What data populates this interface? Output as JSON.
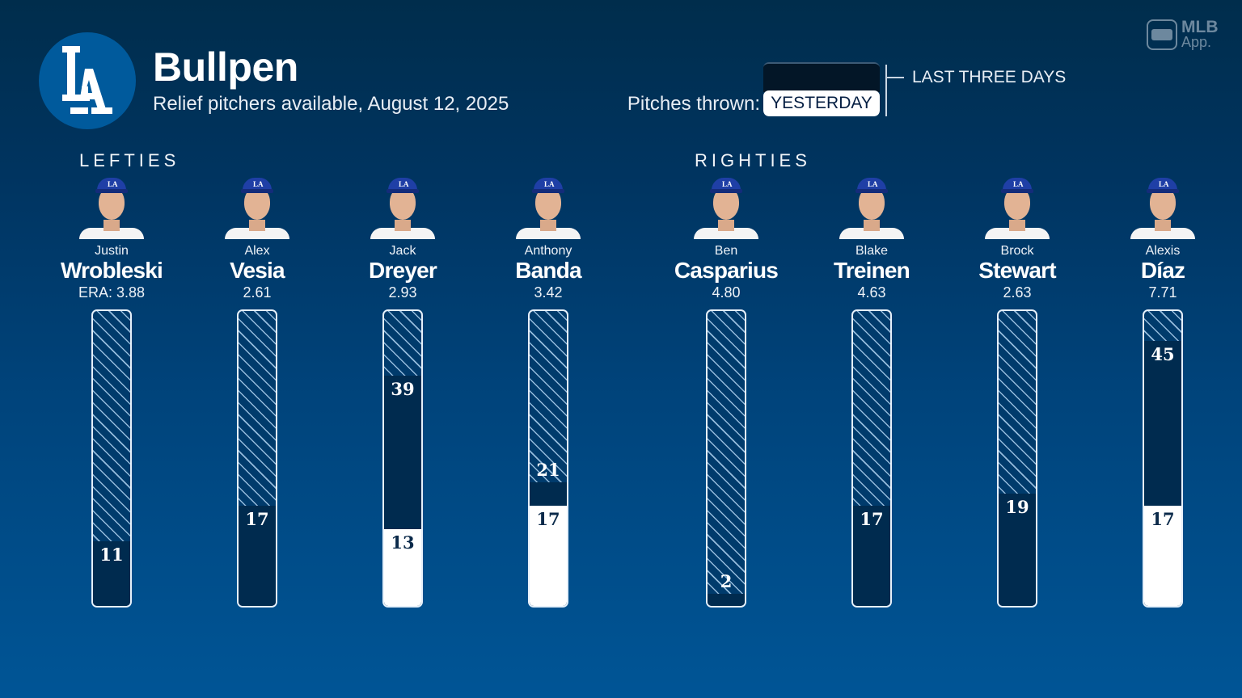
{
  "header": {
    "team_logo_text": "LA",
    "title": "Bullpen",
    "subtitle": "Relief pitchers available, August 12, 2025"
  },
  "legend": {
    "label": "Pitches thrown:",
    "yesterday": "YESTERDAY",
    "last_three_days": "LAST THREE DAYS"
  },
  "branding": {
    "mlb": "MLB",
    "app": "App."
  },
  "sections": {
    "lefties": "LEFTIES",
    "righties": "RIGHTIES"
  },
  "colors": {
    "bg_top": "#002d4c",
    "bg_bottom": "#005596",
    "last_three_days": "#002b4f",
    "yesterday": "#ffffff",
    "logo_circle": "#005a9c"
  },
  "players": [
    {
      "first": "Justin",
      "last": "Wrobleski",
      "era": "ERA: 3.88",
      "hand": "L",
      "last_three_days": 11,
      "yesterday": 0
    },
    {
      "first": "Alex",
      "last": "Vesia",
      "era": "2.61",
      "hand": "L",
      "last_three_days": 17,
      "yesterday": 0
    },
    {
      "first": "Jack",
      "last": "Dreyer",
      "era": "2.93",
      "hand": "L",
      "last_three_days": 39,
      "yesterday": 13
    },
    {
      "first": "Anthony",
      "last": "Banda",
      "era": "3.42",
      "hand": "L",
      "last_three_days": 21,
      "yesterday": 17
    },
    {
      "first": "Ben",
      "last": "Casparius",
      "era": "4.80",
      "hand": "R",
      "last_three_days": 2,
      "yesterday": 0
    },
    {
      "first": "Blake",
      "last": "Treinen",
      "era": "4.63",
      "hand": "R",
      "last_three_days": 17,
      "yesterday": 0
    },
    {
      "first": "Brock",
      "last": "Stewart",
      "era": "2.63",
      "hand": "R",
      "last_three_days": 19,
      "yesterday": 0
    },
    {
      "first": "Alexis",
      "last": "Díaz",
      "era": "7.71",
      "hand": "R",
      "last_three_days": 45,
      "yesterday": 17
    }
  ],
  "chart_data": {
    "type": "bar",
    "title": "Bullpen",
    "subtitle": "Relief pitchers available, August 12, 2025",
    "categories": [
      "Justin Wrobleski",
      "Alex Vesia",
      "Jack Dreyer",
      "Anthony Banda",
      "Ben Casparius",
      "Blake Treinen",
      "Brock Stewart",
      "Alexis Díaz"
    ],
    "groups": [
      {
        "name": "LEFTIES",
        "members": [
          "Justin Wrobleski",
          "Alex Vesia",
          "Jack Dreyer",
          "Anthony Banda"
        ]
      },
      {
        "name": "RIGHTIES",
        "members": [
          "Ben Casparius",
          "Blake Treinen",
          "Brock Stewart",
          "Alexis Díaz"
        ]
      }
    ],
    "era": [
      3.88,
      2.61,
      2.93,
      3.42,
      4.8,
      4.63,
      2.63,
      7.71
    ],
    "series": [
      {
        "name": "Last three days (pitches thrown)",
        "values": [
          11,
          17,
          39,
          21,
          2,
          17,
          19,
          45
        ]
      },
      {
        "name": "Yesterday (pitches thrown)",
        "values": [
          0,
          0,
          13,
          17,
          0,
          0,
          0,
          17
        ]
      }
    ],
    "stacking": "overlay (yesterday is a subset of last three days, drawn from bottom)",
    "ylim": [
      0,
      50
    ],
    "xlabel": "",
    "ylabel": "Pitches thrown",
    "legend": [
      "YESTERDAY",
      "LAST THREE DAYS"
    ],
    "legend_position": "top-right",
    "grid": false
  }
}
